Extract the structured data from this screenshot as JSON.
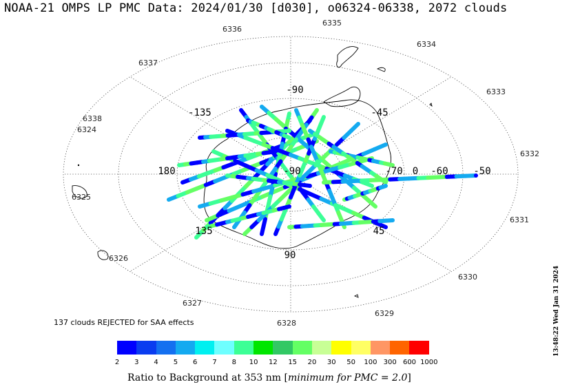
{
  "title": "NOAA-21 OMPS LP PMC Data: 2024/01/30 [d030], o06324-06338, 2072 clouds",
  "orbit_labels": [
    "6324",
    "6325",
    "6326",
    "6327",
    "6328",
    "6329",
    "6330",
    "6331",
    "6332",
    "6333",
    "6334",
    "6335",
    "6336",
    "6337",
    "6338"
  ],
  "grid_labels": {
    "lon_top": "-90",
    "lon_upper_left": "-135",
    "lon_upper_right": "-45",
    "lon_left": "180",
    "lon_bottom": "90",
    "lon_lower_left": "135",
    "lon_lower_right": "45",
    "lat_center": "-90",
    "lat_ring1": "-70",
    "lat_ring2": "0",
    "lat_ring3": "-60",
    "lat_ring4": "-50"
  },
  "rejected_note": "137 clouds REJECTED for SAA effects",
  "colorbar": {
    "colors": [
      "#0000ff",
      "#0a3cf0",
      "#1470f0",
      "#14aaf0",
      "#00f0f0",
      "#6effff",
      "#3cff96",
      "#00e600",
      "#32c864",
      "#64ff64",
      "#c8ff96",
      "#ffff00",
      "#ffff64",
      "#ff9664",
      "#ff6400",
      "#ff0000"
    ],
    "ticks": [
      "2",
      "3",
      "4",
      "5",
      "6",
      "7",
      "8",
      "10",
      "12",
      "15",
      "20",
      "30",
      "50",
      "100",
      "300",
      "600",
      "1000"
    ],
    "title_prefix": "Ratio to Background at 353 nm [",
    "title_italic": "minimum for PMC = 2.0",
    "title_suffix": "]"
  },
  "timestamp": "13:48:22 Wed Jan 31 2024"
}
